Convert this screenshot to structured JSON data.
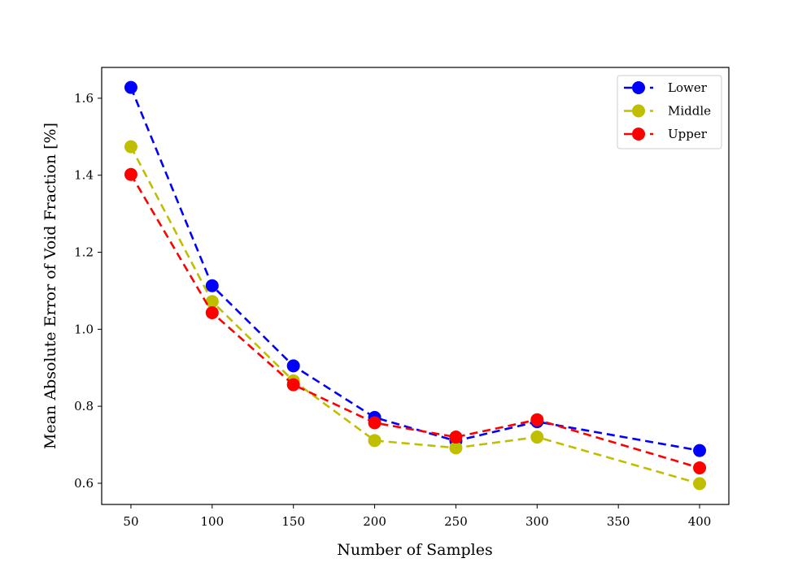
{
  "chart_data": {
    "type": "line",
    "title": "",
    "xlabel": "Number of Samples",
    "ylabel": "Mean Absolute Error of Void Fraction [%]",
    "x": [
      50,
      100,
      150,
      200,
      250,
      300,
      400
    ],
    "xlim": [
      32,
      418
    ],
    "ylim": [
      0.545,
      1.68
    ],
    "x_ticks": [
      50,
      100,
      150,
      200,
      250,
      300,
      350,
      400
    ],
    "x_tick_labels": [
      "50",
      "100",
      "150",
      "200",
      "250",
      "300",
      "350",
      "400"
    ],
    "y_ticks": [
      0.6,
      0.8,
      1.0,
      1.2,
      1.4,
      1.6
    ],
    "y_tick_labels": [
      "0.6",
      "0.8",
      "1.0",
      "1.2",
      "1.4",
      "1.6"
    ],
    "grid": false,
    "legend_position": "top-right",
    "line_style": "dashed",
    "marker": "circle",
    "series": [
      {
        "name": "Lower",
        "color": "#0000ff",
        "values": [
          1.628,
          1.113,
          0.905,
          0.771,
          0.71,
          0.76,
          0.685
        ]
      },
      {
        "name": "Middle",
        "color": "#bfbf00",
        "values": [
          1.474,
          1.072,
          0.866,
          0.711,
          0.692,
          0.72,
          0.599
        ]
      },
      {
        "name": "Upper",
        "color": "#ff0000",
        "values": [
          1.402,
          1.043,
          0.856,
          0.757,
          0.72,
          0.765,
          0.64
        ]
      }
    ]
  }
}
